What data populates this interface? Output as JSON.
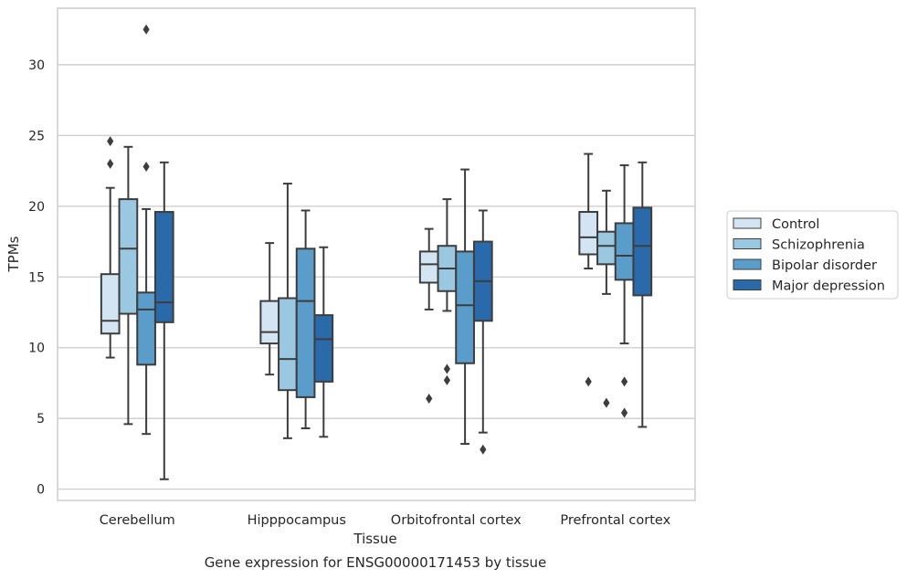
{
  "chart_data": {
    "type": "boxplot",
    "caption": "Gene expression for ENSG00000171453 by tissue",
    "xlabel": "Tissue",
    "ylabel": "TPMs",
    "ylim": [
      -0.8,
      34.0
    ],
    "yticks": [
      0,
      5,
      10,
      15,
      20,
      25,
      30
    ],
    "grid": true,
    "legend_position": "right",
    "categories": [
      "Cerebellum",
      "Hipppocampus",
      "Orbitofrontal cortex",
      "Prefrontal cortex"
    ],
    "series": [
      {
        "name": "Control",
        "color": "#d3e4f3",
        "boxes": [
          {
            "whislo": 9.3,
            "q1": 11.0,
            "med": 11.9,
            "q3": 15.2,
            "whishi": 21.3,
            "fliers": [
              23.0,
              24.6
            ]
          },
          {
            "whislo": 8.1,
            "q1": 10.3,
            "med": 11.1,
            "q3": 13.3,
            "whishi": 17.4,
            "fliers": []
          },
          {
            "whislo": 12.7,
            "q1": 14.6,
            "med": 15.9,
            "q3": 16.8,
            "whishi": 18.4,
            "fliers": [
              6.4
            ]
          },
          {
            "whislo": 15.6,
            "q1": 16.6,
            "med": 17.8,
            "q3": 19.6,
            "whishi": 23.7,
            "fliers": [
              7.6
            ]
          }
        ]
      },
      {
        "name": "Schizophrenia",
        "color": "#9ac8e0",
        "boxes": [
          {
            "whislo": 4.6,
            "q1": 12.4,
            "med": 17.0,
            "q3": 20.5,
            "whishi": 24.2,
            "fliers": []
          },
          {
            "whislo": 3.6,
            "q1": 7.0,
            "med": 9.2,
            "q3": 13.5,
            "whishi": 21.6,
            "fliers": []
          },
          {
            "whislo": 12.6,
            "q1": 14.0,
            "med": 15.6,
            "q3": 17.2,
            "whishi": 20.5,
            "fliers": [
              7.7,
              8.5
            ]
          },
          {
            "whislo": 13.8,
            "q1": 15.9,
            "med": 17.2,
            "q3": 18.2,
            "whishi": 21.1,
            "fliers": [
              6.1
            ]
          }
        ]
      },
      {
        "name": "Bipolar disorder",
        "color": "#5a9dca",
        "boxes": [
          {
            "whislo": 3.9,
            "q1": 8.8,
            "med": 12.7,
            "q3": 13.9,
            "whishi": 19.8,
            "fliers": [
              22.8,
              32.5
            ]
          },
          {
            "whislo": 4.3,
            "q1": 6.5,
            "med": 13.3,
            "q3": 17.0,
            "whishi": 19.7,
            "fliers": []
          },
          {
            "whislo": 3.2,
            "q1": 8.9,
            "med": 13.0,
            "q3": 16.8,
            "whishi": 22.6,
            "fliers": []
          },
          {
            "whislo": 10.3,
            "q1": 14.8,
            "med": 16.5,
            "q3": 18.8,
            "whishi": 22.9,
            "fliers": [
              5.4,
              7.6
            ]
          }
        ]
      },
      {
        "name": "Major depression",
        "color": "#2a6aab",
        "boxes": [
          {
            "whislo": 0.7,
            "q1": 11.8,
            "med": 13.2,
            "q3": 19.6,
            "whishi": 23.1,
            "fliers": []
          },
          {
            "whislo": 3.7,
            "q1": 7.6,
            "med": 10.6,
            "q3": 12.3,
            "whishi": 17.1,
            "fliers": []
          },
          {
            "whislo": 4.0,
            "q1": 11.9,
            "med": 14.7,
            "q3": 17.5,
            "whishi": 19.7,
            "fliers": [
              2.8
            ]
          },
          {
            "whislo": 4.4,
            "q1": 13.7,
            "med": 17.2,
            "q3": 19.9,
            "whishi": 23.1,
            "fliers": []
          }
        ]
      }
    ]
  }
}
